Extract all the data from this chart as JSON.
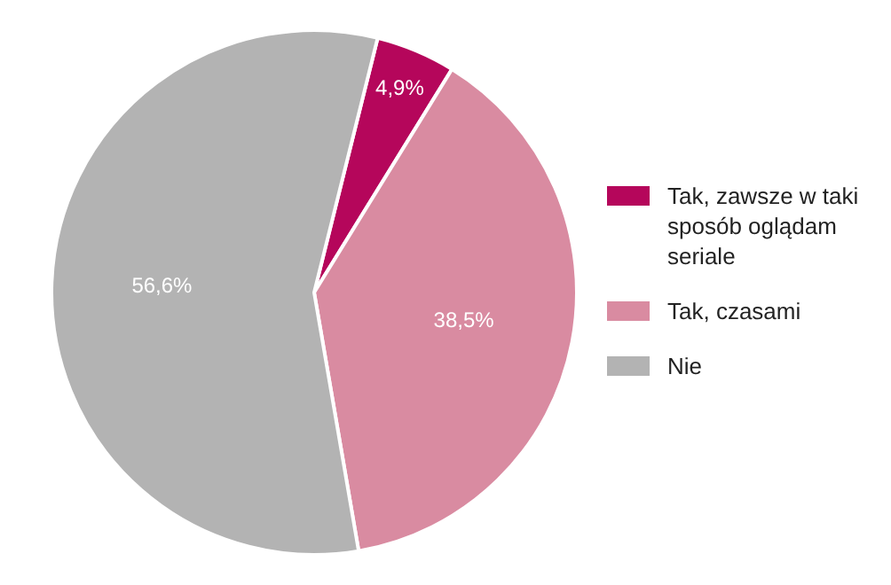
{
  "chart_data": {
    "type": "pie",
    "categories": [
      "Tak, zawsze w taki sposób oglądam seriale",
      "Tak, czasami",
      "Nie"
    ],
    "values": [
      4.9,
      38.5,
      56.6
    ],
    "colors": [
      "#b5065b",
      "#d98ba1",
      "#b3b3b3"
    ],
    "value_labels": [
      "4,9%",
      "38,5%",
      "56,6%"
    ],
    "legend": "right"
  }
}
